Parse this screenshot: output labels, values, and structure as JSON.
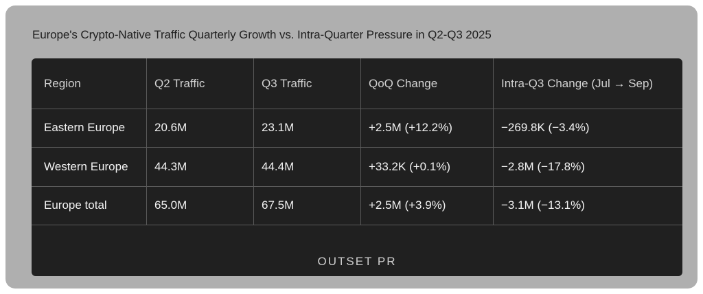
{
  "title": "Europe's Crypto-Native Traffic Quarterly Growth vs. Intra-Quarter Pressure in Q2-Q3 2025",
  "logo_text": "OUTSET PR",
  "chart_data": {
    "type": "table",
    "columns": [
      "Region",
      "Q2 Traffic",
      "Q3 Traffic",
      "QoQ Change",
      "Intra-Q3 Change (Jul → Sep)"
    ],
    "rows": [
      [
        "Eastern Europe",
        "20.6M",
        "23.1M",
        "+2.5M (+12.2%)",
        "−269.8K (−3.4%)"
      ],
      [
        "Western Europe",
        "44.3M",
        "44.4M",
        "+33.2K (+0.1%)",
        "−2.8M (−17.8%)"
      ],
      [
        "Europe total",
        "65.0M",
        "67.5M",
        "+2.5M (+3.9%)",
        "−3.1M (−13.1%)"
      ]
    ]
  }
}
